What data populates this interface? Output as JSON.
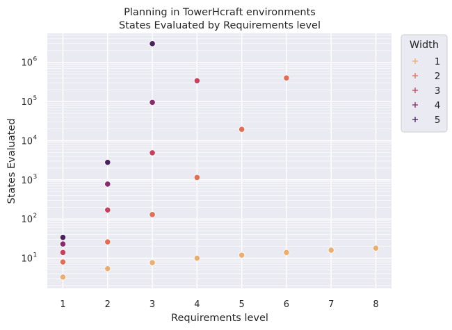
{
  "chart_data": {
    "type": "scatter",
    "title": "Planning in TowerHcraft environments",
    "subtitle": "States Evaluated by Requirements level",
    "xlabel": "Requirements level",
    "ylabel": "States Evaluated",
    "x_ticks": [
      "1",
      "2",
      "3",
      "4",
      "5",
      "6",
      "7",
      "8"
    ],
    "y_scale": "log",
    "y_ticks": [
      {
        "value": 10,
        "label": "10",
        "exp": "1"
      },
      {
        "value": 100,
        "label": "10",
        "exp": "2"
      },
      {
        "value": 1000,
        "label": "10",
        "exp": "3"
      },
      {
        "value": 10000,
        "label": "10",
        "exp": "4"
      },
      {
        "value": 100000,
        "label": "10",
        "exp": "5"
      },
      {
        "value": 1000000,
        "label": "10",
        "exp": "6"
      }
    ],
    "xlim": [
      0.65,
      8.35
    ],
    "ylim": [
      1.7,
      5500000
    ],
    "grid": true,
    "legend": {
      "title": "Width",
      "position": "outside-right-top"
    },
    "series": [
      {
        "name": "1",
        "color": "#ebae6f",
        "x": [
          1,
          2,
          3,
          4,
          5,
          6,
          7,
          8
        ],
        "y": [
          3.3,
          5.4,
          7.7,
          10,
          12,
          14,
          16,
          18
        ]
      },
      {
        "name": "2",
        "color": "#e46d54",
        "x": [
          1,
          2,
          3,
          4,
          5,
          6
        ],
        "y": [
          8,
          26,
          130,
          1150,
          19500,
          400000
        ]
      },
      {
        "name": "3",
        "color": "#c7405c",
        "x": [
          1,
          2,
          3,
          4
        ],
        "y": [
          14,
          170,
          4900,
          340000
        ]
      },
      {
        "name": "4",
        "color": "#882c6d",
        "x": [
          1,
          2,
          3
        ],
        "y": [
          23,
          780,
          95000
        ]
      },
      {
        "name": "5",
        "color": "#4a2160",
        "x": [
          1,
          2,
          3
        ],
        "y": [
          34,
          2800,
          3000000
        ]
      }
    ]
  }
}
